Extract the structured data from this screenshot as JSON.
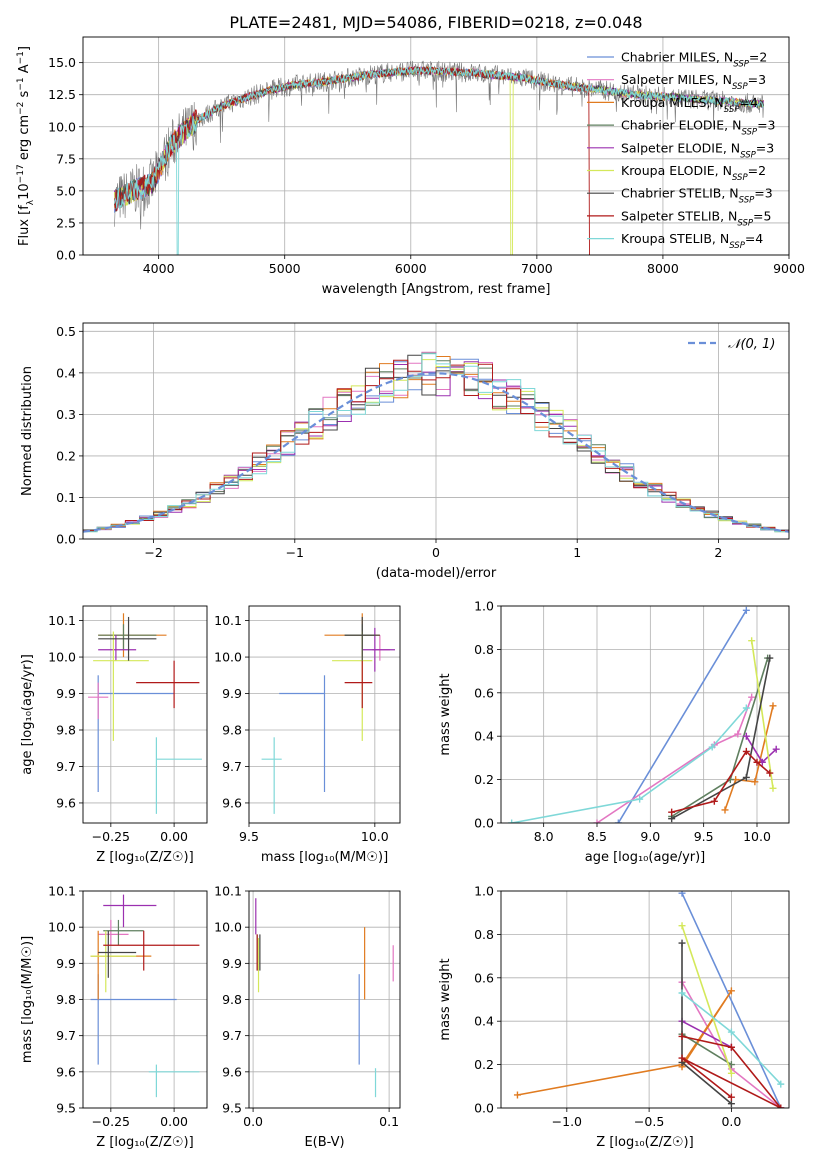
{
  "title": "PLATE=2481, MJD=54086, FIBERID=0218, z=0.048",
  "colors": {
    "Chabrier MILES": "#6a8fd8",
    "Salpeter MILES": "#e377c2",
    "Kroupa MILES": "#e07b20",
    "Chabrier ELODIE": "#5f7f5f",
    "Salpeter ELODIE": "#9b30b0",
    "Kroupa ELODIE": "#d4e85a",
    "Chabrier STELIB": "#444444",
    "Salpeter STELIB": "#b01a1a",
    "Kroupa STELIB": "#7fd8d8"
  },
  "legend": [
    {
      "model": "Chabrier MILES",
      "prefix": "Chabrier MILES, N",
      "nssp": "2"
    },
    {
      "model": "Salpeter MILES",
      "prefix": "Salpeter MILES, N",
      "nssp": "3"
    },
    {
      "model": "Kroupa MILES",
      "prefix": "Kroupa MILES, N",
      "nssp": "4"
    },
    {
      "model": "Chabrier ELODIE",
      "prefix": "Chabrier ELODIE, N",
      "nssp": "3"
    },
    {
      "model": "Salpeter ELODIE",
      "prefix": "Salpeter ELODIE, N",
      "nssp": "3"
    },
    {
      "model": "Kroupa ELODIE",
      "prefix": "Kroupa ELODIE, N",
      "nssp": "2"
    },
    {
      "model": "Chabrier STELIB",
      "prefix": "Chabrier STELIB, N",
      "nssp": "3"
    },
    {
      "model": "Salpeter STELIB",
      "prefix": "Salpeter STELIB, N",
      "nssp": "5"
    },
    {
      "model": "Kroupa STELIB",
      "prefix": "Kroupa STELIB, N",
      "nssp": "4"
    }
  ],
  "chart_data": [
    {
      "type": "line",
      "id": "spectrum",
      "xlabel": "wavelength [Angstrom, rest frame]",
      "ylabel": "Flux [f_λ 10^-17 erg cm^-2 s^-1 A^-1]",
      "xlim": [
        3400,
        9000
      ],
      "ylim": [
        0,
        17
      ],
      "xticks": [
        4000,
        5000,
        6000,
        7000,
        8000,
        9000
      ],
      "yticks": [
        0.0,
        2.5,
        5.0,
        7.5,
        10.0,
        12.5,
        15.0
      ],
      "ytick_labels": [
        "0.0",
        "2.5",
        "5.0",
        "7.5",
        "10.0",
        "12.5",
        "15.0"
      ],
      "spectrum_envelope": {
        "x": [
          3650,
          3800,
          3950,
          4100,
          4300,
          4500,
          4700,
          4900,
          5100,
          5300,
          5500,
          5700,
          5900,
          6100,
          6300,
          6500,
          6700,
          6900,
          7100,
          7300,
          7500,
          7700,
          7900,
          8100,
          8300,
          8500,
          8700
        ],
        "y": [
          4.2,
          5.0,
          5.6,
          8.6,
          10.5,
          11.6,
          12.3,
          12.9,
          13.3,
          13.5,
          13.8,
          14.1,
          14.3,
          14.4,
          14.3,
          14.2,
          14.0,
          13.8,
          13.4,
          13.1,
          12.9,
          12.6,
          12.4,
          12.3,
          12.1,
          12.0,
          11.8
        ]
      },
      "fit_range": [
        3650,
        8800
      ],
      "model_dropouts": {
        "Kroupa ELODIE": 6800,
        "Salpeter STELIB": 7420,
        "Kroupa STELIB": 4150
      }
    },
    {
      "type": "histogram",
      "id": "residuals",
      "xlabel": "(data-model)/error",
      "ylabel": "Normed distribution",
      "xlim": [
        -2.5,
        2.5
      ],
      "ylim": [
        0,
        0.52
      ],
      "xticks": [
        -2,
        -1,
        0,
        1,
        2
      ],
      "xtick_labels": [
        "−2",
        "−1",
        "0",
        "1",
        "2"
      ],
      "yticks": [
        0.0,
        0.1,
        0.2,
        0.3,
        0.4,
        0.5
      ],
      "ytick_labels": [
        "0.0",
        "0.1",
        "0.2",
        "0.3",
        "0.4",
        "0.5"
      ],
      "legend_label": "𝒩(0, 1)",
      "gaussian": {
        "mean": 0,
        "sigma": 1
      }
    },
    {
      "type": "scatter",
      "id": "age_vs_Z",
      "xlabel": "Z [log₁₀(Z/Z☉)]",
      "ylabel": "age  [log₁₀(age/yr)]",
      "xlim": [
        -0.36,
        0.13
      ],
      "ylim": [
        9.545,
        10.14
      ],
      "xticks": [
        -0.25,
        0.0
      ],
      "xtick_labels": [
        "−0.25",
        "0.00"
      ],
      "yticks": [
        9.6,
        9.7,
        9.8,
        9.9,
        10.0,
        10.1
      ],
      "ytick_labels": [
        "9.6",
        "9.7",
        "9.8",
        "9.9",
        "10.0",
        "10.1"
      ],
      "points": [
        {
          "model": "Chabrier MILES",
          "x": -0.3,
          "y": 9.9,
          "xlo": -0.3,
          "xhi": 0.0,
          "ylo": 9.63,
          "yhi": 9.95
        },
        {
          "model": "Salpeter MILES",
          "x": -0.3,
          "y": 9.89,
          "xlo": -0.34,
          "xhi": -0.26,
          "ylo": 9.83,
          "yhi": 9.93
        },
        {
          "model": "Kroupa MILES",
          "x": -0.2,
          "y": 10.06,
          "xlo": -0.3,
          "xhi": -0.03,
          "ylo": 10.0,
          "yhi": 10.12
        },
        {
          "model": "Chabrier ELODIE",
          "x": -0.2,
          "y": 10.06,
          "xlo": -0.3,
          "xhi": -0.07,
          "ylo": 10.02,
          "yhi": 10.09
        },
        {
          "model": "Salpeter ELODIE",
          "x": -0.23,
          "y": 10.02,
          "xlo": -0.3,
          "xhi": -0.15,
          "ylo": 9.99,
          "yhi": 10.06
        },
        {
          "model": "Kroupa ELODIE",
          "x": -0.24,
          "y": 9.99,
          "xlo": -0.32,
          "xhi": -0.1,
          "ylo": 9.77,
          "yhi": 10.07
        },
        {
          "model": "Chabrier STELIB",
          "x": -0.18,
          "y": 10.05,
          "xlo": -0.3,
          "xhi": -0.07,
          "ylo": 9.99,
          "yhi": 10.11
        },
        {
          "model": "Salpeter STELIB",
          "x": 0.0,
          "y": 9.93,
          "xlo": -0.15,
          "xhi": 0.1,
          "ylo": 9.86,
          "yhi": 9.99
        },
        {
          "model": "Kroupa STELIB",
          "x": -0.07,
          "y": 9.72,
          "xlo": -0.07,
          "xhi": 0.11,
          "ylo": 9.57,
          "yhi": 9.78
        }
      ]
    },
    {
      "type": "scatter",
      "id": "age_vs_mass",
      "xlabel": "mass [log₁₀(M/M☉)]",
      "ylabel": "",
      "xlim": [
        9.5,
        10.1
      ],
      "ylim": [
        9.545,
        10.14
      ],
      "xticks": [
        9.5,
        10.0
      ],
      "xtick_labels": [
        "9.5",
        "10.0"
      ],
      "yticks": [
        9.6,
        9.7,
        9.8,
        9.9,
        10.0,
        10.1
      ],
      "ytick_labels": [
        "9.6",
        "9.7",
        "9.8",
        "9.9",
        "10.0",
        "10.1"
      ],
      "points": [
        {
          "model": "Chabrier MILES",
          "x": 9.8,
          "y": 9.9,
          "xlo": 9.62,
          "xhi": 9.8,
          "ylo": 9.63,
          "yhi": 9.95
        },
        {
          "model": "Salpeter MILES",
          "x": 10.02,
          "y": 10.02,
          "xlo": 9.99,
          "xhi": 10.06,
          "ylo": 9.99,
          "yhi": 10.06
        },
        {
          "model": "Kroupa MILES",
          "x": 9.95,
          "y": 10.06,
          "xlo": 9.8,
          "xhi": 10.02,
          "ylo": 10.0,
          "yhi": 10.12
        },
        {
          "model": "Chabrier ELODIE",
          "x": 9.95,
          "y": 10.06,
          "xlo": 9.88,
          "xhi": 10.0,
          "ylo": 10.02,
          "yhi": 10.09
        },
        {
          "model": "Salpeter ELODIE",
          "x": 10.0,
          "y": 10.02,
          "xlo": 9.95,
          "xhi": 10.08,
          "ylo": 9.96,
          "yhi": 10.08
        },
        {
          "model": "Kroupa ELODIE",
          "x": 9.95,
          "y": 9.99,
          "xlo": 9.83,
          "xhi": 9.99,
          "ylo": 9.77,
          "yhi": 10.07
        },
        {
          "model": "Chabrier STELIB",
          "x": 9.95,
          "y": 10.06,
          "xlo": 9.88,
          "xhi": 10.02,
          "ylo": 9.99,
          "yhi": 10.11
        },
        {
          "model": "Salpeter STELIB",
          "x": 9.95,
          "y": 9.93,
          "xlo": 9.88,
          "xhi": 9.99,
          "ylo": 9.86,
          "yhi": 9.99
        },
        {
          "model": "Kroupa STELIB",
          "x": 9.6,
          "y": 9.72,
          "xlo": 9.55,
          "xhi": 9.63,
          "ylo": 9.57,
          "yhi": 9.78
        }
      ]
    },
    {
      "type": "line",
      "id": "weight_vs_age",
      "xlabel": "age  [log₁₀(age/yr)]",
      "ylabel": "mass weight",
      "xlim": [
        7.6,
        10.3
      ],
      "ylim": [
        0,
        1.0
      ],
      "xticks": [
        8.0,
        8.5,
        9.0,
        9.5,
        10.0
      ],
      "xtick_labels": [
        "8.0",
        "8.5",
        "9.0",
        "9.5",
        "10.0"
      ],
      "yticks": [
        0.0,
        0.2,
        0.4,
        0.6,
        0.8,
        1.0
      ],
      "ytick_labels": [
        "0.0",
        "0.2",
        "0.4",
        "0.6",
        "0.8",
        "1.0"
      ],
      "series": [
        {
          "model": "Chabrier MILES",
          "x": [
            8.7,
            9.9
          ],
          "y": [
            0.0,
            0.98
          ]
        },
        {
          "model": "Salpeter MILES",
          "x": [
            8.5,
            9.6,
            9.82,
            9.95
          ],
          "y": [
            0.0,
            0.36,
            0.41,
            0.58
          ]
        },
        {
          "model": "Kroupa MILES",
          "x": [
            9.7,
            9.8,
            9.98,
            10.15
          ],
          "y": [
            0.06,
            0.2,
            0.19,
            0.54
          ]
        },
        {
          "model": "Chabrier ELODIE",
          "x": [
            9.2,
            9.75,
            10.1
          ],
          "y": [
            0.03,
            0.2,
            0.76
          ]
        },
        {
          "model": "Salpeter ELODIE",
          "x": [
            9.9,
            10.05,
            10.18
          ],
          "y": [
            0.4,
            0.28,
            0.34
          ]
        },
        {
          "model": "Kroupa ELODIE",
          "x": [
            9.95,
            10.15
          ],
          "y": [
            0.84,
            0.16
          ]
        },
        {
          "model": "Chabrier STELIB",
          "x": [
            9.2,
            9.9,
            10.12
          ],
          "y": [
            0.02,
            0.21,
            0.76
          ]
        },
        {
          "model": "Salpeter STELIB",
          "x": [
            9.2,
            9.6,
            9.9,
            10.0,
            10.12
          ],
          "y": [
            0.05,
            0.1,
            0.33,
            0.28,
            0.23
          ]
        },
        {
          "model": "Kroupa STELIB",
          "x": [
            7.7,
            8.9,
            9.58,
            9.9
          ],
          "y": [
            0.0,
            0.11,
            0.35,
            0.53
          ]
        }
      ]
    },
    {
      "type": "scatter",
      "id": "mass_vs_Z",
      "xlabel": "Z [log₁₀(Z/Z☉)]",
      "ylabel": "mass [log₁₀(M/M☉)]",
      "xlim": [
        -0.36,
        0.13
      ],
      "ylim": [
        9.5,
        10.1
      ],
      "xticks": [
        -0.25,
        0.0
      ],
      "xtick_labels": [
        "−0.25",
        "0.00"
      ],
      "yticks": [
        9.5,
        9.6,
        9.7,
        9.8,
        9.9,
        10.0,
        10.1
      ],
      "ytick_labels": [
        "9.5",
        "9.6",
        "9.7",
        "9.8",
        "9.9",
        "10.0",
        "10.1"
      ],
      "points": [
        {
          "model": "Chabrier MILES",
          "x": -0.3,
          "y": 9.8,
          "xlo": -0.33,
          "xhi": 0.01,
          "ylo": 9.62,
          "yhi": 9.87
        },
        {
          "model": "Salpeter MILES",
          "x": -0.25,
          "y": 9.98,
          "xlo": -0.3,
          "xhi": -0.18,
          "ylo": 9.95,
          "yhi": 10.02
        },
        {
          "model": "Kroupa MILES",
          "x": -0.3,
          "y": 9.92,
          "xlo": -0.33,
          "xhi": -0.09,
          "ylo": 9.8,
          "yhi": 9.99
        },
        {
          "model": "Chabrier ELODIE",
          "x": -0.22,
          "y": 9.99,
          "xlo": -0.28,
          "xhi": -0.12,
          "ylo": 9.95,
          "yhi": 10.02
        },
        {
          "model": "Salpeter ELODIE",
          "x": -0.2,
          "y": 10.06,
          "xlo": -0.28,
          "xhi": -0.07,
          "ylo": 10.0,
          "yhi": 10.09
        },
        {
          "model": "Kroupa ELODIE",
          "x": -0.27,
          "y": 9.92,
          "xlo": -0.33,
          "xhi": -0.15,
          "ylo": 9.82,
          "yhi": 9.99
        },
        {
          "model": "Chabrier STELIB",
          "x": -0.26,
          "y": 9.93,
          "xlo": -0.3,
          "xhi": -0.15,
          "ylo": 9.86,
          "yhi": 9.99
        },
        {
          "model": "Salpeter STELIB",
          "x": -0.12,
          "y": 9.95,
          "xlo": -0.28,
          "xhi": 0.1,
          "ylo": 9.88,
          "yhi": 9.99
        },
        {
          "model": "Kroupa STELIB",
          "x": -0.07,
          "y": 9.6,
          "xlo": -0.1,
          "xhi": 0.1,
          "ylo": 9.53,
          "yhi": 9.62
        }
      ]
    },
    {
      "type": "scatter",
      "id": "mass_vs_EBV",
      "xlabel": "E(B-V)",
      "ylabel": "",
      "xlim": [
        -0.003,
        0.108
      ],
      "ylim": [
        9.5,
        10.1
      ],
      "xticks": [
        0.0,
        0.1
      ],
      "xtick_labels": [
        "0.0",
        "0.1"
      ],
      "yticks": [
        9.5,
        9.6,
        9.7,
        9.8,
        9.9,
        10.0,
        10.1
      ],
      "ytick_labels": [
        "9.5",
        "9.6",
        "9.7",
        "9.8",
        "9.9",
        "10.0",
        "10.1"
      ],
      "points": [
        {
          "model": "Chabrier MILES",
          "x": 0.078,
          "y": 9.8,
          "xlo": 0.078,
          "xhi": 0.078,
          "ylo": 9.62,
          "yhi": 9.87
        },
        {
          "model": "Salpeter MILES",
          "x": 0.103,
          "y": 9.9,
          "xlo": 0.103,
          "xhi": 0.103,
          "ylo": 9.85,
          "yhi": 9.95
        },
        {
          "model": "Kroupa MILES",
          "x": 0.082,
          "y": 9.92,
          "xlo": 0.082,
          "xhi": 0.082,
          "ylo": 9.8,
          "yhi": 10.0
        },
        {
          "model": "Chabrier ELODIE",
          "x": 0.003,
          "y": 9.93,
          "xlo": 0.003,
          "xhi": 0.003,
          "ylo": 9.88,
          "yhi": 9.98
        },
        {
          "model": "Salpeter ELODIE",
          "x": 0.002,
          "y": 10.04,
          "xlo": 0.002,
          "xhi": 0.002,
          "ylo": 9.98,
          "yhi": 10.08
        },
        {
          "model": "Kroupa ELODIE",
          "x": 0.004,
          "y": 9.9,
          "xlo": 0.004,
          "xhi": 0.004,
          "ylo": 9.82,
          "yhi": 9.97
        },
        {
          "model": "Chabrier STELIB",
          "x": 0.005,
          "y": 9.93,
          "xlo": 0.005,
          "xhi": 0.005,
          "ylo": 9.88,
          "yhi": 9.98
        },
        {
          "model": "Salpeter STELIB",
          "x": 0.003,
          "y": 9.93,
          "xlo": 0.003,
          "xhi": 0.003,
          "ylo": 9.88,
          "yhi": 9.98
        },
        {
          "model": "Kroupa STELIB",
          "x": 0.09,
          "y": 9.57,
          "xlo": 0.09,
          "xhi": 0.09,
          "ylo": 9.53,
          "yhi": 9.61
        }
      ]
    },
    {
      "type": "line",
      "id": "weight_vs_Z",
      "xlabel": "Z [log₁₀(Z/Z☉)]",
      "ylabel": "mass weight",
      "xlim": [
        -1.4,
        0.35
      ],
      "ylim": [
        0,
        1.0
      ],
      "xticks": [
        -1.0,
        -0.5,
        0.0
      ],
      "xtick_labels": [
        "−1.0",
        "−0.5",
        "0.0"
      ],
      "yticks": [
        0.0,
        0.2,
        0.4,
        0.6,
        0.8,
        1.0
      ],
      "ytick_labels": [
        "0.0",
        "0.2",
        "0.4",
        "0.6",
        "0.8",
        "1.0"
      ],
      "series": [
        {
          "model": "Chabrier MILES",
          "x": [
            -0.3,
            0.3
          ],
          "y": [
            0.99,
            0.0
          ]
        },
        {
          "model": "Salpeter MILES",
          "x": [
            -0.3,
            0.0,
            0.3
          ],
          "y": [
            0.58,
            0.18,
            0.0
          ]
        },
        {
          "model": "Kroupa MILES",
          "x": [
            -1.3,
            -0.3,
            0.0,
            -0.3
          ],
          "y": [
            0.06,
            0.2,
            0.54,
            0.19
          ]
        },
        {
          "model": "Chabrier ELODIE",
          "x": [
            -0.3,
            0.0
          ],
          "y": [
            0.34,
            0.2
          ]
        },
        {
          "model": "Salpeter ELODIE",
          "x": [
            -0.3,
            0.0
          ],
          "y": [
            0.4,
            0.28
          ]
        },
        {
          "model": "Kroupa ELODIE",
          "x": [
            -0.3,
            0.0
          ],
          "y": [
            0.84,
            0.16
          ]
        },
        {
          "model": "Chabrier STELIB",
          "x": [
            -0.3,
            -0.3,
            0.0
          ],
          "y": [
            0.76,
            0.21,
            0.02
          ]
        },
        {
          "model": "Salpeter STELIB",
          "x": [
            -0.3,
            0.0,
            0.3,
            -0.3,
            0.0
          ],
          "y": [
            0.33,
            0.28,
            0.0,
            0.23,
            0.05
          ]
        },
        {
          "model": "Kroupa STELIB",
          "x": [
            -0.3,
            0.0,
            0.3
          ],
          "y": [
            0.53,
            0.35,
            0.11
          ]
        }
      ]
    }
  ]
}
